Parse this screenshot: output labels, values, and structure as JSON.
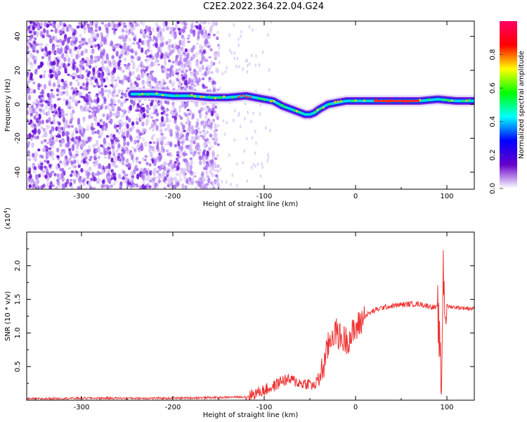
{
  "chart_data": [
    {
      "type": "heatmap",
      "title": "C2E2.2022.364.22.04.G24",
      "xlabel": "Height of straight line (km)",
      "ylabel": "Frequency (Hz)",
      "xlim": [
        -360,
        130
      ],
      "ylim": [
        -50,
        49
      ],
      "xticks": [
        -300,
        -200,
        -100,
        0,
        100
      ],
      "yticks": [
        -40,
        -20,
        0,
        20,
        40
      ],
      "colorbar": {
        "label": "Normalized spectral amplitude",
        "range": [
          0,
          1
        ],
        "ticks": [
          "0.0",
          "0.2",
          "0.4",
          "0.6",
          "0.8"
        ],
        "colors": [
          "#ffffff",
          "#6600cc",
          "#0000ff",
          "#00ffff",
          "#00ff00",
          "#ffff00",
          "#ff0000",
          "#ff0066"
        ]
      },
      "trace": {
        "x": [
          -245,
          -220,
          -200,
          -180,
          -160,
          -140,
          -120,
          -100,
          -90,
          -80,
          -70,
          -60,
          -55,
          -50,
          -45,
          -40,
          -30,
          -20,
          -10,
          0,
          10,
          30,
          50,
          70,
          90,
          110,
          130
        ],
        "y": [
          6,
          6,
          5,
          5,
          4,
          4,
          5,
          3,
          2,
          -1,
          -3,
          -5,
          -6,
          -6,
          -5,
          -3,
          0,
          1,
          2,
          2,
          2,
          2,
          2,
          2,
          3,
          2,
          2
        ]
      },
      "noise_region_x": [
        -360,
        -150
      ]
    },
    {
      "type": "line",
      "xlabel": "Height of straight line (km)",
      "ylabel": "SNR (10 * v/v)",
      "y_multiplier_label": "(x10",
      "y_multiplier_exp": "4",
      "y_multiplier_close": ")",
      "xlim": [
        -360,
        130
      ],
      "ylim": [
        0,
        2.5
      ],
      "xticks": [
        -300,
        -200,
        -100,
        0,
        100
      ],
      "yticks": [
        "0.5",
        "1.0",
        "1.5",
        "2.0"
      ],
      "color": "#ee3333",
      "x": [
        -360,
        -300,
        -200,
        -150,
        -120,
        -100,
        -90,
        -80,
        -70,
        -60,
        -50,
        -45,
        -40,
        -35,
        -30,
        -25,
        -20,
        -15,
        -10,
        -5,
        0,
        5,
        10,
        20,
        30,
        40,
        50,
        60,
        70,
        80,
        90,
        94,
        96,
        98,
        100,
        110,
        120,
        130
      ],
      "y": [
        0.02,
        0.03,
        0.03,
        0.04,
        0.05,
        0.15,
        0.2,
        0.3,
        0.3,
        0.25,
        0.25,
        0.2,
        0.35,
        0.5,
        0.8,
        1.0,
        1.0,
        0.9,
        0.9,
        0.95,
        1.05,
        1.15,
        1.25,
        1.33,
        1.38,
        1.4,
        1.42,
        1.43,
        1.43,
        1.4,
        1.37,
        0.2,
        2.0,
        1.35,
        1.4,
        1.38,
        1.37,
        1.36
      ]
    }
  ]
}
